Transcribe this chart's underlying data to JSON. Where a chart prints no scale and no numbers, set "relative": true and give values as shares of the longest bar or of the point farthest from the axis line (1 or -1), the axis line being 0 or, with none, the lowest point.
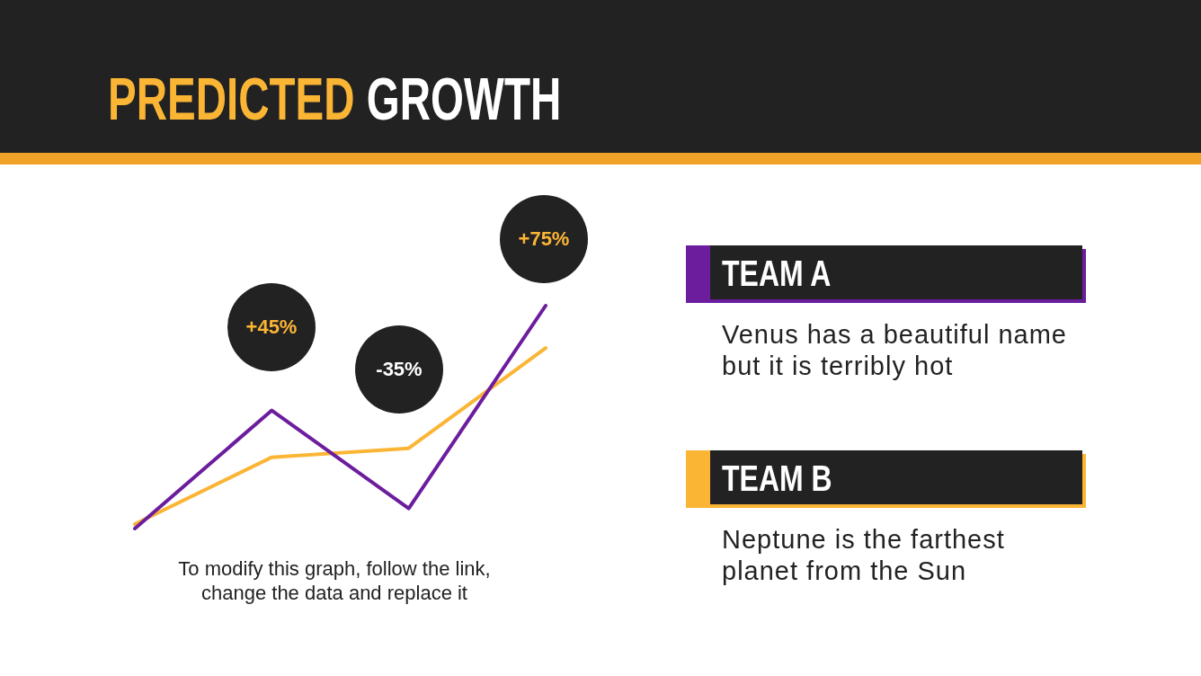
{
  "chart_data": {
    "type": "line",
    "title": "PREDICTED GROWTH",
    "categories": [
      null,
      null,
      null,
      null
    ],
    "relative": true,
    "series": [
      {
        "name": "TEAM A",
        "color": "#6c1d9e",
        "values": [
          0,
          0.53,
          0.09,
          1
        ]
      },
      {
        "name": "TEAM B",
        "color": "#fbb535",
        "values": [
          0.02,
          0.32,
          0.36,
          0.81
        ]
      }
    ],
    "annotations": [
      "+45%",
      "-35%",
      "+75%",
      "To modify this graph, follow the link, change the data and replace it",
      "Venus has a beautiful name but it is terribly hot",
      "Neptune is the farthest planet from the Sun"
    ],
    "legend": "right",
    "marker": "none",
    "line_style": "solid"
  }
}
